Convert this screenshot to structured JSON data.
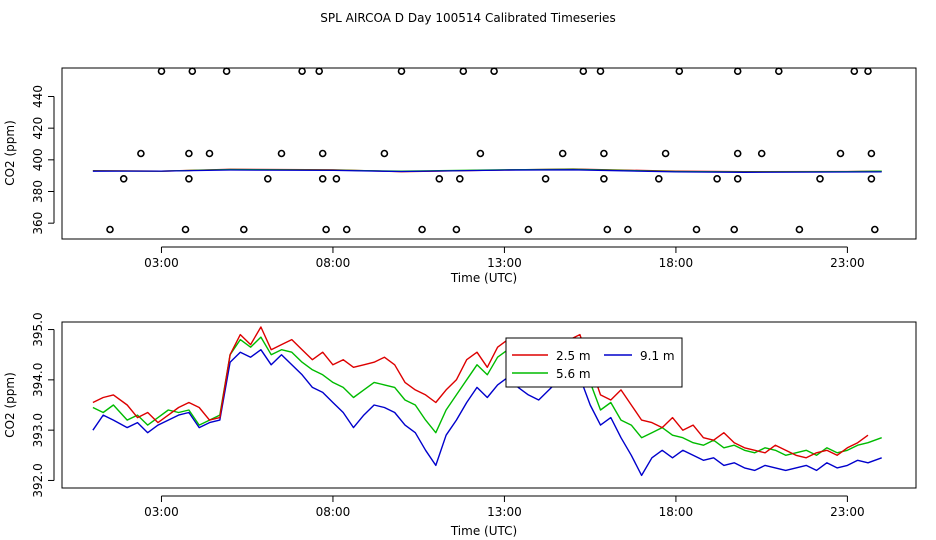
{
  "title": "SPL AIRCOA D  Day 100514  Calibrated Timeseries",
  "colors": {
    "red": "#dd0000",
    "green": "#00bb00",
    "blue": "#0000cc"
  },
  "chart_data": [
    {
      "id": "top",
      "type": "line",
      "xlabel": "Time (UTC)",
      "ylabel": "CO2 (ppm)",
      "xlim": [
        0.1,
        25.0
      ],
      "ylim": [
        350,
        458
      ],
      "xticks": [
        3,
        8,
        13,
        18,
        23
      ],
      "xticklabels": [
        "03:00",
        "08:00",
        "13:00",
        "18:00",
        "23:00"
      ],
      "yticks": [
        360,
        380,
        400,
        420,
        440
      ],
      "yticklabels": [
        "360",
        "380",
        "400",
        "420",
        "440"
      ],
      "lines": [
        {
          "name": "2.5 m",
          "color": "#dd0000",
          "x": [
            1,
            3,
            5,
            8,
            10,
            13,
            15,
            18,
            20,
            23,
            24
          ],
          "y": [
            393.2,
            392.8,
            394.0,
            393.7,
            392.5,
            393.6,
            394.2,
            392.8,
            392.5,
            392.6,
            392.9
          ]
        },
        {
          "name": "5.6 m",
          "color": "#00bb00",
          "x": [
            1,
            3,
            5,
            8,
            10,
            13,
            15,
            18,
            20,
            23,
            24
          ],
          "y": [
            393.0,
            392.9,
            393.9,
            393.5,
            392.8,
            393.7,
            394.0,
            392.6,
            392.4,
            392.5,
            392.8
          ]
        },
        {
          "name": "9.1 m",
          "color": "#0000cc",
          "x": [
            1,
            3,
            5,
            8,
            10,
            13,
            15,
            18,
            20,
            23,
            24
          ],
          "y": [
            392.8,
            392.9,
            393.6,
            393.3,
            392.6,
            393.5,
            393.7,
            392.4,
            392.1,
            392.3,
            392.4
          ]
        }
      ],
      "points": {
        "x": [
          1.5,
          1.9,
          2.4,
          3.0,
          3.7,
          3.8,
          3.8,
          3.9,
          4.4,
          4.9,
          5.4,
          6.1,
          6.5,
          7.1,
          7.6,
          7.7,
          7.7,
          7.8,
          8.1,
          8.4,
          9.5,
          10.0,
          10.6,
          11.1,
          11.6,
          11.7,
          11.8,
          12.3,
          12.7,
          13.7,
          14.2,
          14.7,
          15.3,
          15.8,
          15.9,
          15.9,
          16.0,
          16.6,
          17.5,
          17.7,
          18.1,
          18.6,
          19.2,
          19.7,
          19.8,
          19.8,
          19.8,
          20.5,
          21.0,
          21.6,
          22.2,
          22.8,
          23.2,
          23.6,
          23.7,
          23.7,
          23.8
        ],
        "y": [
          356,
          388,
          404,
          456,
          356,
          388,
          404,
          456,
          404,
          456,
          356,
          388,
          404,
          456,
          456,
          404,
          388,
          356,
          388,
          356,
          404,
          456,
          356,
          388,
          356,
          388,
          456,
          404,
          456,
          356,
          388,
          404,
          456,
          456,
          404,
          388,
          356,
          356,
          388,
          404,
          456,
          356,
          388,
          356,
          388,
          404,
          456,
          404,
          456,
          356,
          388,
          404,
          456,
          456,
          404,
          388,
          356
        ]
      }
    },
    {
      "id": "bottom",
      "type": "line",
      "xlabel": "Time (UTC)",
      "ylabel": "CO2 (ppm)",
      "xlim": [
        0.1,
        25.0
      ],
      "ylim": [
        391.85,
        395.15
      ],
      "xticks": [
        3,
        8,
        13,
        18,
        23
      ],
      "xticklabels": [
        "03:00",
        "08:00",
        "13:00",
        "18:00",
        "23:00"
      ],
      "yticks": [
        392.0,
        393.0,
        394.0,
        395.0
      ],
      "yticklabels": [
        "392.0",
        "393.0",
        "394.0",
        "395.0"
      ],
      "legend": {
        "position": "top-center",
        "entries": [
          "2.5 m",
          "9.1 m",
          "5.6 m"
        ]
      },
      "series": [
        {
          "name": "2.5 m",
          "color": "#dd0000",
          "x": [
            1.0,
            1.3,
            1.6,
            2.0,
            2.3,
            2.6,
            2.9,
            3.2,
            3.5,
            3.8,
            4.1,
            4.4,
            4.7,
            5.0,
            5.3,
            5.6,
            5.9,
            6.2,
            6.5,
            6.8,
            7.1,
            7.4,
            7.7,
            8.0,
            8.3,
            8.6,
            8.9,
            9.2,
            9.5,
            9.8,
            10.1,
            10.4,
            10.7,
            11.0,
            11.3,
            11.6,
            11.9,
            12.2,
            12.5,
            12.8,
            13.1,
            13.4,
            13.7,
            14.0,
            14.3,
            14.6,
            14.9,
            15.2,
            15.5,
            15.8,
            16.1,
            16.4,
            16.7,
            17.0,
            17.3,
            17.6,
            17.9,
            18.2,
            18.5,
            18.8,
            19.1,
            19.4,
            19.7,
            20.0,
            20.3,
            20.6,
            20.9,
            21.2,
            21.5,
            21.8,
            22.1,
            22.4,
            22.7,
            23.0,
            23.3,
            23.6
          ],
          "y": [
            393.55,
            393.65,
            393.7,
            393.5,
            393.25,
            393.35,
            393.15,
            393.3,
            393.45,
            393.55,
            393.45,
            393.2,
            393.25,
            394.5,
            394.9,
            394.7,
            395.05,
            394.6,
            394.7,
            394.8,
            394.6,
            394.4,
            394.55,
            394.3,
            394.4,
            394.25,
            394.3,
            394.35,
            394.45,
            394.3,
            393.95,
            393.8,
            393.7,
            393.55,
            393.8,
            394.0,
            394.4,
            394.55,
            394.25,
            394.65,
            394.8,
            394.5,
            394.35,
            394.6,
            394.5,
            394.75,
            394.8,
            394.9,
            394.3,
            393.7,
            393.6,
            393.8,
            393.5,
            393.2,
            393.15,
            393.05,
            393.25,
            393.0,
            393.1,
            392.85,
            392.8,
            392.95,
            392.75,
            392.65,
            392.6,
            392.55,
            392.7,
            392.6,
            392.5,
            392.45,
            392.55,
            392.6,
            392.5,
            392.65,
            392.75,
            392.9
          ]
        },
        {
          "name": "5.6 m",
          "color": "#00bb00",
          "x": [
            1.0,
            1.3,
            1.6,
            2.0,
            2.3,
            2.6,
            2.9,
            3.2,
            3.5,
            3.8,
            4.1,
            4.4,
            4.7,
            5.0,
            5.3,
            5.6,
            5.9,
            6.2,
            6.5,
            6.8,
            7.1,
            7.4,
            7.7,
            8.0,
            8.3,
            8.6,
            8.9,
            9.2,
            9.5,
            9.8,
            10.1,
            10.4,
            10.7,
            11.0,
            11.3,
            11.6,
            11.9,
            12.2,
            12.5,
            12.8,
            13.1,
            13.4,
            13.7,
            14.0,
            14.3,
            14.6,
            14.9,
            15.2,
            15.5,
            15.8,
            16.1,
            16.4,
            16.7,
            17.0,
            17.3,
            17.6,
            17.9,
            18.2,
            18.5,
            18.8,
            19.1,
            19.4,
            19.7,
            20.0,
            20.3,
            20.6,
            20.9,
            21.2,
            21.5,
            21.8,
            22.1,
            22.4,
            22.7,
            23.0,
            23.3,
            23.6,
            24.0
          ],
          "y": [
            393.45,
            393.35,
            393.5,
            393.2,
            393.3,
            393.1,
            393.25,
            393.4,
            393.35,
            393.4,
            393.1,
            393.2,
            393.3,
            394.5,
            394.8,
            394.65,
            394.85,
            394.5,
            394.6,
            394.55,
            394.35,
            394.2,
            394.1,
            393.95,
            393.85,
            393.65,
            393.8,
            393.95,
            393.9,
            393.85,
            393.6,
            393.5,
            393.2,
            392.95,
            393.4,
            393.7,
            394.0,
            394.3,
            394.1,
            394.45,
            394.6,
            394.35,
            394.15,
            394.2,
            394.3,
            394.45,
            394.5,
            394.55,
            393.95,
            393.4,
            393.55,
            393.2,
            393.1,
            392.85,
            392.95,
            393.05,
            392.9,
            392.85,
            392.75,
            392.7,
            392.8,
            392.65,
            392.7,
            392.6,
            392.55,
            392.65,
            392.6,
            392.5,
            392.55,
            392.6,
            392.5,
            392.65,
            392.55,
            392.6,
            392.7,
            392.75,
            392.85
          ]
        },
        {
          "name": "9.1 m",
          "color": "#0000cc",
          "x": [
            1.0,
            1.3,
            1.6,
            2.0,
            2.3,
            2.6,
            2.9,
            3.2,
            3.5,
            3.8,
            4.1,
            4.4,
            4.7,
            5.0,
            5.3,
            5.6,
            5.9,
            6.2,
            6.5,
            6.8,
            7.1,
            7.4,
            7.7,
            8.0,
            8.3,
            8.6,
            8.9,
            9.2,
            9.5,
            9.8,
            10.1,
            10.4,
            10.7,
            11.0,
            11.3,
            11.6,
            11.9,
            12.2,
            12.5,
            12.8,
            13.1,
            13.4,
            13.7,
            14.0,
            14.3,
            14.6,
            14.9,
            15.2,
            15.5,
            15.8,
            16.1,
            16.4,
            16.7,
            17.0,
            17.3,
            17.6,
            17.9,
            18.2,
            18.5,
            18.8,
            19.1,
            19.4,
            19.7,
            20.0,
            20.3,
            20.6,
            20.9,
            21.2,
            21.5,
            21.8,
            22.1,
            22.4,
            22.7,
            23.0,
            23.3,
            23.6,
            24.0
          ],
          "y": [
            393.0,
            393.3,
            393.2,
            393.05,
            393.15,
            392.95,
            393.1,
            393.2,
            393.3,
            393.35,
            393.05,
            393.15,
            393.2,
            394.35,
            394.55,
            394.45,
            394.6,
            394.3,
            394.5,
            394.3,
            394.1,
            393.85,
            393.75,
            393.55,
            393.35,
            393.05,
            393.3,
            393.5,
            393.45,
            393.35,
            393.1,
            392.95,
            392.6,
            392.3,
            392.9,
            393.2,
            393.55,
            393.85,
            393.65,
            393.9,
            394.05,
            393.85,
            393.7,
            393.6,
            393.8,
            394.0,
            394.2,
            394.05,
            393.5,
            393.1,
            393.25,
            392.85,
            392.5,
            392.1,
            392.45,
            392.6,
            392.45,
            392.6,
            392.5,
            392.4,
            392.45,
            392.3,
            392.35,
            392.25,
            392.2,
            392.3,
            392.25,
            392.2,
            392.25,
            392.3,
            392.2,
            392.35,
            392.25,
            392.3,
            392.4,
            392.35,
            392.45
          ]
        }
      ]
    }
  ]
}
